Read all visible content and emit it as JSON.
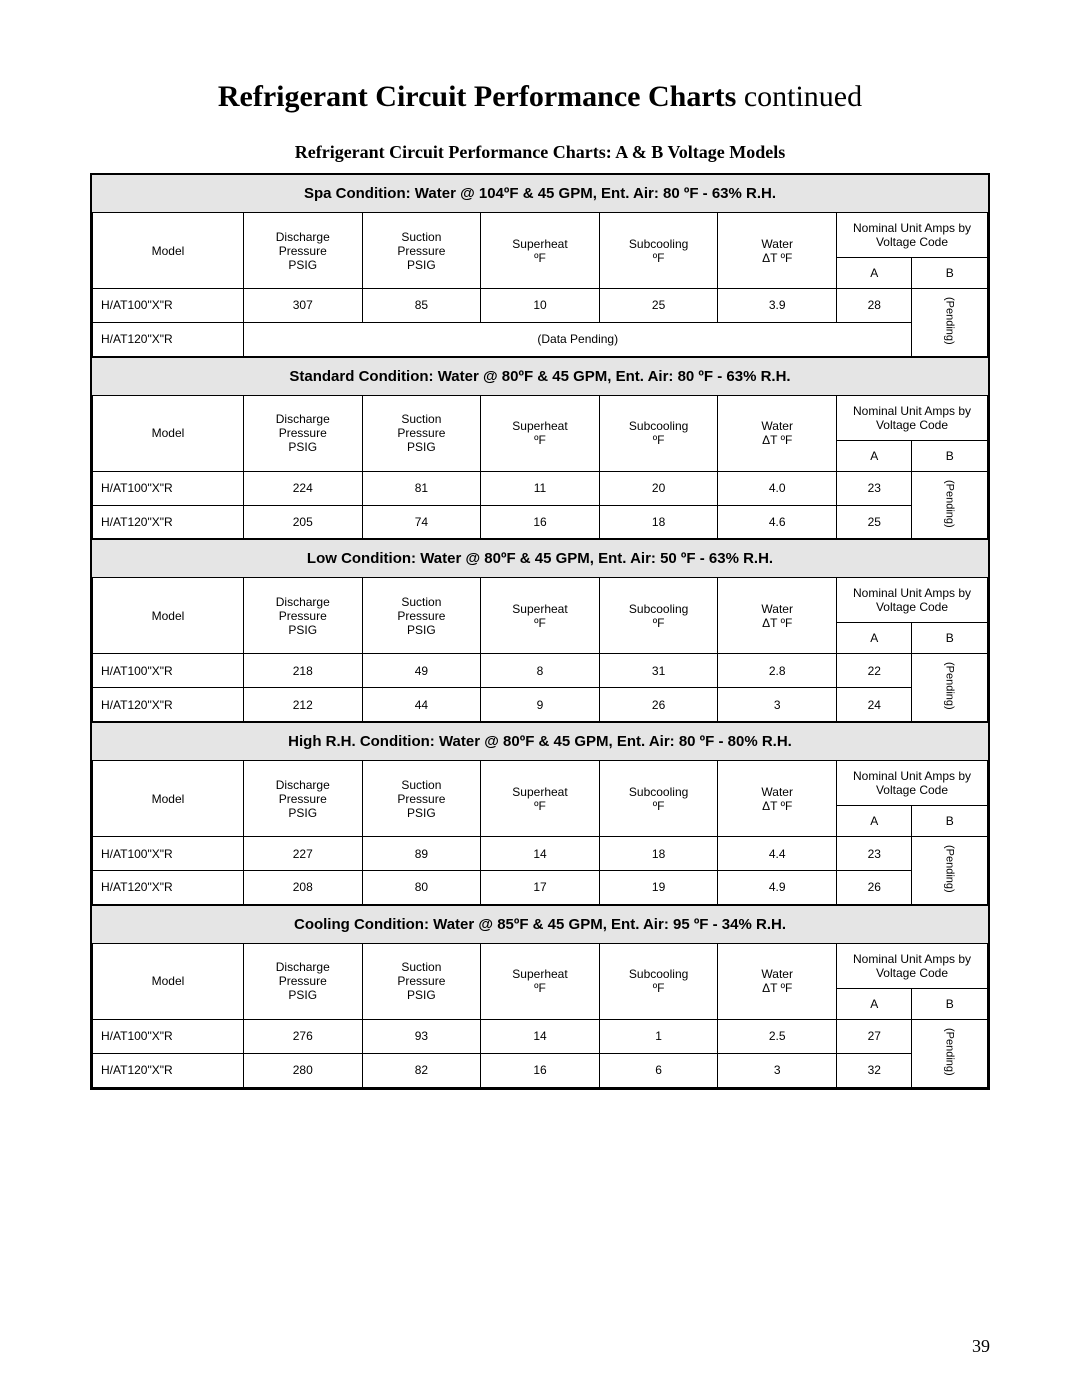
{
  "page": {
    "title_bold": "Refrigerant Circuit Performance Charts ",
    "title_light": "continued",
    "subtitle": "Refrigerant Circuit Performance Charts: A & B Voltage Models",
    "page_number": "39"
  },
  "columns": {
    "model": "Model",
    "discharge": "Discharge Pressure PSIG",
    "suction": "Suction Pressure PSIG",
    "superheat": "Superheat ºF",
    "subcooling": "Subcooling ºF",
    "water_dt": "Water ΔT ºF",
    "nominal_amps": "Nominal Unit Amps by Voltage Code",
    "col_a": "A",
    "col_b": "B",
    "pending_vert": "(Pending)",
    "pending_row": "(Data Pending)"
  },
  "sections": [
    {
      "title": "Spa Condition:  Water @ 104ºF & 45 GPM, Ent. Air: 80 ºF - 63% R.H.",
      "rows": [
        {
          "model": "H/AT100\"X\"R",
          "discharge": "307",
          "suction": "85",
          "superheat": "10",
          "subcooling": "25",
          "water_dt": "3.9",
          "a": "28"
        },
        {
          "model": "H/AT120\"X\"R",
          "pending": true
        }
      ]
    },
    {
      "title": "Standard Condition:  Water @ 80ºF & 45 GPM, Ent. Air: 80 ºF - 63% R.H.",
      "rows": [
        {
          "model": "H/AT100\"X\"R",
          "discharge": "224",
          "suction": "81",
          "superheat": "11",
          "subcooling": "20",
          "water_dt": "4.0",
          "a": "23"
        },
        {
          "model": "H/AT120\"X\"R",
          "discharge": "205",
          "suction": "74",
          "superheat": "16",
          "subcooling": "18",
          "water_dt": "4.6",
          "a": "25"
        }
      ]
    },
    {
      "title": "Low Condition:  Water @ 80ºF & 45 GPM, Ent. Air: 50 ºF - 63% R.H.",
      "rows": [
        {
          "model": "H/AT100\"X\"R",
          "discharge": "218",
          "suction": "49",
          "superheat": "8",
          "subcooling": "31",
          "water_dt": "2.8",
          "a": "22"
        },
        {
          "model": "H/AT120\"X\"R",
          "discharge": "212",
          "suction": "44",
          "superheat": "9",
          "subcooling": "26",
          "water_dt": "3",
          "a": "24"
        }
      ]
    },
    {
      "title": "High R.H. Condition:  Water @ 80ºF & 45 GPM, Ent. Air: 80 ºF - 80% R.H.",
      "rows": [
        {
          "model": "H/AT100\"X\"R",
          "discharge": "227",
          "suction": "89",
          "superheat": "14",
          "subcooling": "18",
          "water_dt": "4.4",
          "a": "23"
        },
        {
          "model": "H/AT120\"X\"R",
          "discharge": "208",
          "suction": "80",
          "superheat": "17",
          "subcooling": "19",
          "water_dt": "4.9",
          "a": "26"
        }
      ]
    },
    {
      "title": "Cooling Condition:  Water @ 85ºF & 45 GPM, Ent. Air: 95 ºF - 34% R.H.",
      "rows": [
        {
          "model": "H/AT100\"X\"R",
          "discharge": "276",
          "suction": "93",
          "superheat": "14",
          "subcooling": "1",
          "water_dt": "2.5",
          "a": "27"
        },
        {
          "model": "H/AT120\"X\"R",
          "discharge": "280",
          "suction": "82",
          "superheat": "16",
          "subcooling": "6",
          "water_dt": "3",
          "a": "32"
        }
      ]
    }
  ]
}
